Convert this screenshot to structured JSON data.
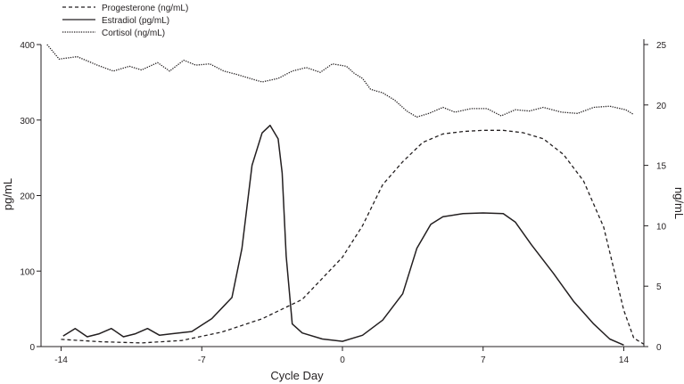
{
  "chart_data": {
    "type": "line",
    "xlabel": "Cycle Day",
    "ylabel_left": "pg/mL",
    "ylabel_right": "ng/mL",
    "xlim": [
      -15,
      15
    ],
    "ylim_left": [
      0,
      400
    ],
    "ylim_right": [
      0,
      25
    ],
    "x_ticks": [
      -14,
      -7,
      0,
      7,
      14
    ],
    "y_ticks_left": [
      0,
      100,
      200,
      300,
      400
    ],
    "y_ticks_right": [
      0,
      5,
      10,
      15,
      20,
      25
    ],
    "grid": false,
    "legend_position": "top-left",
    "series": [
      {
        "name": "Progesterone (ng/mL)",
        "axis": "right",
        "style": "dashed",
        "color": "#231f20",
        "points": [
          [
            -14,
            0.6
          ],
          [
            -12,
            0.4
          ],
          [
            -10,
            0.3
          ],
          [
            -8,
            0.5
          ],
          [
            -6,
            1.2
          ],
          [
            -4,
            2.3
          ],
          [
            -2,
            3.9
          ],
          [
            0,
            7.4
          ],
          [
            1,
            10.0
          ],
          [
            2,
            13.4
          ],
          [
            3,
            15.3
          ],
          [
            4,
            16.9
          ],
          [
            5,
            17.6
          ],
          [
            6,
            17.8
          ],
          [
            7,
            17.9
          ],
          [
            8,
            17.9
          ],
          [
            9,
            17.7
          ],
          [
            10,
            17.2
          ],
          [
            11,
            15.9
          ],
          [
            12,
            13.7
          ],
          [
            13,
            9.9
          ],
          [
            14,
            3.0
          ],
          [
            14.5,
            0.7
          ],
          [
            15,
            0.2
          ]
        ]
      },
      {
        "name": "Estradiol (pg/mL)",
        "axis": "left",
        "style": "solid",
        "color": "#231f20",
        "points": [
          [
            -13.9,
            14
          ],
          [
            -13.3,
            24
          ],
          [
            -12.7,
            13
          ],
          [
            -12.1,
            17
          ],
          [
            -11.5,
            24
          ],
          [
            -10.9,
            13
          ],
          [
            -10.3,
            17
          ],
          [
            -9.7,
            24
          ],
          [
            -9.1,
            15
          ],
          [
            -8.5,
            17
          ],
          [
            -7.5,
            20
          ],
          [
            -6.5,
            37
          ],
          [
            -5.5,
            65
          ],
          [
            -5.0,
            130
          ],
          [
            -4.5,
            240
          ],
          [
            -4.0,
            283
          ],
          [
            -3.6,
            293
          ],
          [
            -3.2,
            275
          ],
          [
            -3.0,
            230
          ],
          [
            -2.8,
            120
          ],
          [
            -2.5,
            30
          ],
          [
            -2.0,
            18
          ],
          [
            -1,
            10
          ],
          [
            0,
            7
          ],
          [
            1,
            15
          ],
          [
            2,
            35
          ],
          [
            3,
            70
          ],
          [
            3.7,
            130
          ],
          [
            4.4,
            162
          ],
          [
            5,
            172
          ],
          [
            6,
            176
          ],
          [
            7,
            177
          ],
          [
            8,
            176
          ],
          [
            8.6,
            165
          ],
          [
            9.4,
            135
          ],
          [
            10.5,
            97
          ],
          [
            11.5,
            60
          ],
          [
            12.5,
            30
          ],
          [
            13.3,
            10
          ],
          [
            14,
            2
          ]
        ]
      },
      {
        "name": "Cortisol (ng/mL)",
        "axis": "right",
        "style": "dotted",
        "color": "#231f20",
        "points": [
          [
            -14.7,
            25.0
          ],
          [
            -14.1,
            23.8
          ],
          [
            -13.2,
            24.0
          ],
          [
            -12.2,
            23.3
          ],
          [
            -11.4,
            22.8
          ],
          [
            -10.6,
            23.2
          ],
          [
            -10,
            22.9
          ],
          [
            -9.2,
            23.5
          ],
          [
            -8.6,
            22.8
          ],
          [
            -7.9,
            23.7
          ],
          [
            -7.3,
            23.3
          ],
          [
            -6.6,
            23.4
          ],
          [
            -5.9,
            22.8
          ],
          [
            -5.2,
            22.5
          ],
          [
            -4.6,
            22.2
          ],
          [
            -4.0,
            21.9
          ],
          [
            -3.2,
            22.2
          ],
          [
            -2.5,
            22.8
          ],
          [
            -1.8,
            23.1
          ],
          [
            -1.1,
            22.7
          ],
          [
            -0.5,
            23.4
          ],
          [
            0.2,
            23.2
          ],
          [
            0.6,
            22.6
          ],
          [
            1.0,
            22.2
          ],
          [
            1.4,
            21.3
          ],
          [
            2.0,
            21.0
          ],
          [
            2.6,
            20.4
          ],
          [
            3.2,
            19.5
          ],
          [
            3.7,
            19.0
          ],
          [
            4.3,
            19.3
          ],
          [
            5.0,
            19.8
          ],
          [
            5.6,
            19.4
          ],
          [
            6.4,
            19.7
          ],
          [
            7.2,
            19.7
          ],
          [
            7.9,
            19.1
          ],
          [
            8.6,
            19.6
          ],
          [
            9.3,
            19.5
          ],
          [
            10.0,
            19.8
          ],
          [
            10.9,
            19.4
          ],
          [
            11.7,
            19.3
          ],
          [
            12.5,
            19.8
          ],
          [
            13.3,
            19.9
          ],
          [
            14.1,
            19.6
          ],
          [
            14.5,
            19.2
          ]
        ]
      }
    ]
  }
}
